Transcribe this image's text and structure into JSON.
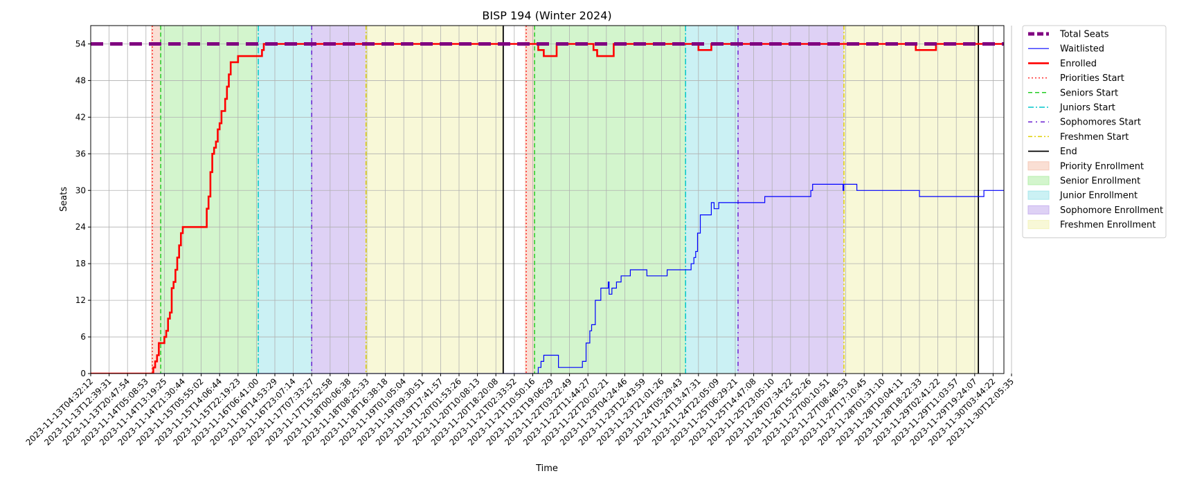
{
  "chart_data": {
    "type": "line",
    "title": "BISP 194 (Winter 2024)",
    "xlabel": "Time",
    "ylabel": "Seats",
    "ylim": [
      0,
      57
    ],
    "yticks": [
      0,
      6,
      12,
      18,
      24,
      30,
      36,
      42,
      48,
      54
    ],
    "grid": true,
    "legend_placement": "outside-right",
    "x_ticks": [
      "2023-11-13T04:32:12",
      "2023-11-13T12:39:31",
      "2023-11-13T20:47:54",
      "2023-11-14T05:08:53",
      "2023-11-14T13:19:25",
      "2023-11-14T21:30:44",
      "2023-11-15T05:55:02",
      "2023-11-15T14:06:44",
      "2023-11-15T22:19:23",
      "2023-11-16T06:41:00",
      "2023-11-16T14:53:29",
      "2023-11-16T23:07:14",
      "2023-11-17T07:33:27",
      "2023-11-17T15:52:58",
      "2023-11-18T00:06:38",
      "2023-11-18T08:25:33",
      "2023-11-18T16:38:18",
      "2023-11-19T01:05:04",
      "2023-11-19T09:30:51",
      "2023-11-19T17:41:57",
      "2023-11-20T01:53:26",
      "2023-11-20T10:08:13",
      "2023-11-20T18:20:08",
      "2023-11-21T02:33:52",
      "2023-11-21T10:50:16",
      "2023-11-21T19:06:29",
      "2023-11-22T03:22:49",
      "2023-11-22T11:44:27",
      "2023-11-22T20:02:21",
      "2023-11-23T04:24:46",
      "2023-11-23T12:43:59",
      "2023-11-23T21:01:26",
      "2023-11-24T05:29:43",
      "2023-11-24T13:47:31",
      "2023-11-24T22:05:09",
      "2023-11-25T06:29:21",
      "2023-11-25T14:47:08",
      "2023-11-25T23:05:10",
      "2023-11-26T07:34:22",
      "2023-11-26T15:52:26",
      "2023-11-27T00:10:51",
      "2023-11-27T08:48:53",
      "2023-11-27T17:10:45",
      "2023-11-28T01:31:10",
      "2023-11-28T10:04:11",
      "2023-11-28T18:22:33",
      "2023-11-29T02:41:22",
      "2023-11-29T11:03:57",
      "2023-11-29T19:24:07",
      "2023-11-30T03:44:22",
      "2023-11-30T12:05:35"
    ],
    "x_range_tick_index": [
      0,
      50.5
    ],
    "regions": [
      {
        "name": "Priority Enrollment",
        "color": "#f6c9b7",
        "start": 3.3,
        "end": 3.8
      },
      {
        "name": "Senior Enrollment",
        "color": "#b5eeab",
        "start": 3.8,
        "end": 9.1
      },
      {
        "name": "Junior Enrollment",
        "color": "#a8e8ec",
        "start": 9.1,
        "end": 12.0
      },
      {
        "name": "Sophomore Enrollment",
        "color": "#c8b3ef",
        "start": 12.0,
        "end": 14.95
      },
      {
        "name": "Freshmen Enrollment",
        "color": "#f4f4bd",
        "start": 14.95,
        "end": 22.4
      },
      {
        "name": "Priority Enrollment",
        "color": "#f6c9b7",
        "start": 23.6,
        "end": 24.1
      },
      {
        "name": "Senior Enrollment",
        "color": "#b5eeab",
        "start": 24.1,
        "end": 32.3
      },
      {
        "name": "Junior Enrollment",
        "color": "#a8e8ec",
        "start": 32.3,
        "end": 35.15
      },
      {
        "name": "Sophomore Enrollment",
        "color": "#c8b3ef",
        "start": 35.15,
        "end": 40.9
      },
      {
        "name": "Freshmen Enrollment",
        "color": "#f4f4bd",
        "start": 40.9,
        "end": 48.2
      }
    ],
    "markers": [
      {
        "name": "Priorities Start",
        "color": "#ff2a2a",
        "dash": "2 3",
        "x": 3.35
      },
      {
        "name": "Seniors Start",
        "color": "#22cc22",
        "dash": "6 4",
        "x": 3.8
      },
      {
        "name": "Juniors Start",
        "color": "#00c5cc",
        "dash": "8 3 2 3",
        "x": 9.1
      },
      {
        "name": "Sophomores Start",
        "color": "#6a1fd0",
        "dash": "6 5 2 5",
        "x": 12.0
      },
      {
        "name": "Freshmen Start",
        "color": "#e0d000",
        "dash": "6 3 2 3",
        "x": 14.95
      },
      {
        "name": "End",
        "color": "#000000",
        "dash": "",
        "x": 22.4
      },
      {
        "name": "Priorities Start",
        "color": "#ff2a2a",
        "dash": "2 3",
        "x": 23.65
      },
      {
        "name": "Seniors Start",
        "color": "#22cc22",
        "dash": "6 4",
        "x": 24.1
      },
      {
        "name": "Juniors Start",
        "color": "#00c5cc",
        "dash": "8 3 2 3",
        "x": 32.3
      },
      {
        "name": "Sophomores Start",
        "color": "#6a1fd0",
        "dash": "6 5 2 5",
        "x": 35.15
      },
      {
        "name": "Freshmen Start",
        "color": "#e0d000",
        "dash": "6 3 2 3",
        "x": 40.9
      },
      {
        "name": "End",
        "color": "#000000",
        "dash": "",
        "x": 48.2
      }
    ],
    "series": [
      {
        "name": "Total Seats",
        "color": "#800080",
        "points": [
          [
            0,
            54
          ],
          [
            50.5,
            54
          ]
        ]
      },
      {
        "name": "Waitlisted",
        "color": "#0000ff",
        "points": [
          [
            0,
            0
          ],
          [
            24.3,
            0
          ],
          [
            24.3,
            1
          ],
          [
            24.45,
            1
          ],
          [
            24.45,
            2
          ],
          [
            24.6,
            2
          ],
          [
            24.6,
            3
          ],
          [
            25.4,
            3
          ],
          [
            25.4,
            1
          ],
          [
            26.7,
            1
          ],
          [
            26.7,
            2
          ],
          [
            26.9,
            2
          ],
          [
            26.9,
            5
          ],
          [
            27.1,
            5
          ],
          [
            27.1,
            7
          ],
          [
            27.2,
            7
          ],
          [
            27.2,
            8
          ],
          [
            27.4,
            8
          ],
          [
            27.4,
            12
          ],
          [
            27.7,
            12
          ],
          [
            27.7,
            14
          ],
          [
            28.1,
            14
          ],
          [
            28.1,
            15
          ],
          [
            28.15,
            15
          ],
          [
            28.15,
            13
          ],
          [
            28.3,
            13
          ],
          [
            28.3,
            14
          ],
          [
            28.55,
            14
          ],
          [
            28.55,
            15
          ],
          [
            28.8,
            15
          ],
          [
            28.8,
            16
          ],
          [
            29.3,
            16
          ],
          [
            29.3,
            17
          ],
          [
            30.2,
            17
          ],
          [
            30.2,
            16
          ],
          [
            31.3,
            16
          ],
          [
            31.3,
            17
          ],
          [
            32.6,
            17
          ],
          [
            32.6,
            18
          ],
          [
            32.75,
            18
          ],
          [
            32.75,
            19
          ],
          [
            32.85,
            19
          ],
          [
            32.85,
            20
          ],
          [
            32.95,
            20
          ],
          [
            32.95,
            23
          ],
          [
            33.1,
            23
          ],
          [
            33.1,
            26
          ],
          [
            33.7,
            26
          ],
          [
            33.7,
            28
          ],
          [
            33.85,
            28
          ],
          [
            33.85,
            27
          ],
          [
            34.1,
            27
          ],
          [
            34.1,
            28
          ],
          [
            36.6,
            28
          ],
          [
            36.6,
            29
          ],
          [
            39.1,
            29
          ],
          [
            39.1,
            30
          ],
          [
            39.2,
            30
          ],
          [
            39.2,
            31
          ],
          [
            40.85,
            31
          ],
          [
            40.85,
            30
          ],
          [
            40.9,
            30
          ],
          [
            40.9,
            31
          ],
          [
            41.6,
            31
          ],
          [
            41.6,
            30
          ],
          [
            45.0,
            30
          ],
          [
            45.0,
            29
          ],
          [
            48.5,
            29
          ],
          [
            48.5,
            30
          ],
          [
            50.5,
            30
          ]
        ]
      },
      {
        "name": "Enrolled",
        "color": "#ff0000",
        "points": [
          [
            0,
            0
          ],
          [
            3.4,
            0
          ],
          [
            3.4,
            1
          ],
          [
            3.5,
            1
          ],
          [
            3.5,
            2
          ],
          [
            3.6,
            2
          ],
          [
            3.6,
            3
          ],
          [
            3.7,
            3
          ],
          [
            3.7,
            5
          ],
          [
            4.0,
            5
          ],
          [
            4.0,
            6
          ],
          [
            4.1,
            6
          ],
          [
            4.1,
            7
          ],
          [
            4.2,
            7
          ],
          [
            4.2,
            9
          ],
          [
            4.3,
            9
          ],
          [
            4.3,
            10
          ],
          [
            4.4,
            10
          ],
          [
            4.4,
            14
          ],
          [
            4.5,
            14
          ],
          [
            4.5,
            15
          ],
          [
            4.6,
            15
          ],
          [
            4.6,
            17
          ],
          [
            4.7,
            17
          ],
          [
            4.7,
            19
          ],
          [
            4.8,
            19
          ],
          [
            4.8,
            21
          ],
          [
            4.9,
            21
          ],
          [
            4.9,
            23
          ],
          [
            5.0,
            23
          ],
          [
            5.0,
            24
          ],
          [
            6.3,
            24
          ],
          [
            6.3,
            27
          ],
          [
            6.4,
            27
          ],
          [
            6.4,
            29
          ],
          [
            6.5,
            29
          ],
          [
            6.5,
            33
          ],
          [
            6.6,
            33
          ],
          [
            6.6,
            36
          ],
          [
            6.7,
            36
          ],
          [
            6.7,
            37
          ],
          [
            6.8,
            37
          ],
          [
            6.8,
            38
          ],
          [
            6.9,
            38
          ],
          [
            6.9,
            40
          ],
          [
            7.0,
            40
          ],
          [
            7.0,
            41
          ],
          [
            7.1,
            41
          ],
          [
            7.1,
            43
          ],
          [
            7.3,
            43
          ],
          [
            7.3,
            45
          ],
          [
            7.4,
            45
          ],
          [
            7.4,
            47
          ],
          [
            7.5,
            47
          ],
          [
            7.5,
            49
          ],
          [
            7.6,
            49
          ],
          [
            7.6,
            51
          ],
          [
            8.0,
            51
          ],
          [
            8.0,
            52
          ],
          [
            9.3,
            52
          ],
          [
            9.3,
            53
          ],
          [
            9.4,
            53
          ],
          [
            9.4,
            54
          ],
          [
            24.3,
            54
          ],
          [
            24.3,
            53
          ],
          [
            24.6,
            53
          ],
          [
            24.6,
            52
          ],
          [
            25.3,
            52
          ],
          [
            25.3,
            54
          ],
          [
            27.3,
            54
          ],
          [
            27.3,
            53
          ],
          [
            27.5,
            53
          ],
          [
            27.5,
            52
          ],
          [
            28.4,
            52
          ],
          [
            28.4,
            54
          ],
          [
            33.0,
            54
          ],
          [
            33.0,
            53
          ],
          [
            33.7,
            53
          ],
          [
            33.7,
            54
          ],
          [
            44.8,
            54
          ],
          [
            44.8,
            53
          ],
          [
            45.9,
            53
          ],
          [
            45.9,
            54
          ],
          [
            50.5,
            54
          ]
        ]
      }
    ],
    "legend": [
      {
        "label": "Total Seats",
        "kind": "line",
        "color": "#800080",
        "width": 5,
        "dash": "9 4"
      },
      {
        "label": "Waitlisted",
        "kind": "line",
        "color": "#0000ff",
        "width": 1.2,
        "dash": ""
      },
      {
        "label": "Enrolled",
        "kind": "line",
        "color": "#ff0000",
        "width": 2.6,
        "dash": ""
      },
      {
        "label": "Priorities Start",
        "kind": "line",
        "color": "#ff2a2a",
        "width": 1.5,
        "dash": "2 3"
      },
      {
        "label": "Seniors Start",
        "kind": "line",
        "color": "#22cc22",
        "width": 1.5,
        "dash": "6 4"
      },
      {
        "label": "Juniors Start",
        "kind": "line",
        "color": "#00c5cc",
        "width": 1.5,
        "dash": "8 3 2 3"
      },
      {
        "label": "Sophomores Start",
        "kind": "line",
        "color": "#6a1fd0",
        "width": 1.5,
        "dash": "6 5 2 5"
      },
      {
        "label": "Freshmen Start",
        "kind": "line",
        "color": "#e0d000",
        "width": 1.5,
        "dash": "6 3 2 3"
      },
      {
        "label": "End",
        "kind": "line",
        "color": "#000000",
        "width": 1.8,
        "dash": ""
      },
      {
        "label": "Priority Enrollment",
        "kind": "patch",
        "color": "#f6c9b7"
      },
      {
        "label": "Senior Enrollment",
        "kind": "patch",
        "color": "#b5eeab"
      },
      {
        "label": "Junior Enrollment",
        "kind": "patch",
        "color": "#a8e8ec"
      },
      {
        "label": "Sophomore Enrollment",
        "kind": "patch",
        "color": "#c8b3ef"
      },
      {
        "label": "Freshmen Enrollment",
        "kind": "patch",
        "color": "#f4f4bd"
      }
    ]
  }
}
